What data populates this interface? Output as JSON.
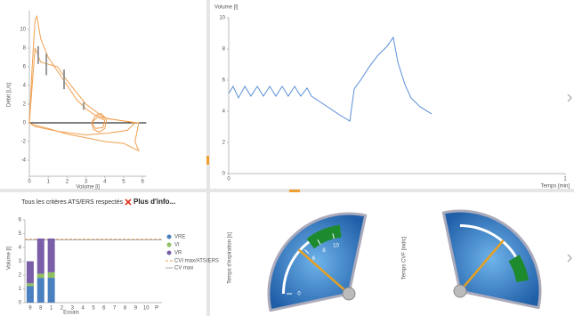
{
  "chart_data": [
    {
      "type": "line",
      "x_label": "Volume [l]",
      "y_label": "Débit [L/s]",
      "xlim": [
        0,
        6.2
      ],
      "xticks": [
        0,
        1,
        2,
        3,
        4,
        5,
        6
      ],
      "ylim": [
        -6,
        12
      ],
      "yticks": [
        -4,
        -2,
        0,
        2,
        4,
        6,
        8,
        10
      ],
      "series": [
        {
          "color": "#f0a050",
          "x": [
            0,
            0.15,
            0.3,
            0.4,
            0.6,
            1,
            1.5,
            2,
            2.5,
            3,
            3.5,
            4,
            5,
            5.8,
            5.7,
            5.6,
            5.8,
            5,
            4,
            3,
            2,
            1,
            0.2,
            0
          ],
          "values": [
            0,
            6,
            11,
            11.4,
            9,
            7,
            5.5,
            4,
            2.5,
            1.5,
            0.8,
            0.5,
            0.2,
            0,
            -1,
            -2,
            -3,
            -2.2,
            -2,
            -1.6,
            -1.2,
            -0.6,
            -0.2,
            0
          ]
        },
        {
          "color": "#f0a050",
          "x": [
            0,
            0.3,
            0.6,
            1.5,
            2,
            3,
            4,
            5.6,
            5.2,
            4.2,
            3,
            1.5,
            0.3,
            0
          ],
          "values": [
            0,
            8,
            6.5,
            6,
            4.5,
            2,
            0.5,
            0,
            -0.8,
            -1.1,
            -1.3,
            -0.9,
            -0.4,
            0
          ]
        },
        {
          "color": "#f0a050",
          "x": [
            3.3,
            3.5,
            3.8,
            4.1,
            4.0,
            3.7,
            3.4,
            3.3,
            3.6,
            4.0,
            3.9,
            3.5,
            3.3
          ],
          "values": [
            0,
            0.8,
            1,
            0.4,
            -0.6,
            -1,
            -0.7,
            0,
            0.6,
            0.3,
            -0.5,
            -0.6,
            0
          ]
        }
      ],
      "range_color": "#999999",
      "ranges": [
        {
          "x": 0.47,
          "low": 6.3,
          "high": 8.2
        },
        {
          "x": 0.9,
          "low": 5.1,
          "high": 7.4
        },
        {
          "x": 1.84,
          "low": 3.6,
          "high": 5.7
        },
        {
          "x": 2.88,
          "low": 1.4,
          "high": 2.2
        }
      ]
    },
    {
      "type": "line",
      "x_label": "Temps [min]",
      "y_label": "Volume [l]",
      "xlim": [
        0,
        1
      ],
      "xticks": [
        0,
        1
      ],
      "ylim": [
        0,
        10
      ],
      "yticks": [
        0,
        2,
        4,
        6,
        8,
        10
      ],
      "series": [
        {
          "color": "#5b8fd8",
          "x": [
            0,
            0.013,
            0.029,
            0.048,
            0.066,
            0.085,
            0.103,
            0.122,
            0.14,
            0.159,
            0.177,
            0.196,
            0.214,
            0.233,
            0.246,
            0.286,
            0.325,
            0.36,
            0.373,
            0.392,
            0.418,
            0.444,
            0.471,
            0.489,
            0.503,
            0.524,
            0.542,
            0.569,
            0.603
          ],
          "values": [
            5.14,
            5.6,
            4.86,
            5.6,
            4.97,
            5.6,
            4.97,
            5.6,
            4.97,
            5.6,
            4.97,
            5.6,
            4.97,
            5.49,
            4.97,
            4.4,
            3.83,
            3.37,
            5.43,
            6.0,
            6.86,
            7.6,
            8.17,
            8.74,
            7.14,
            5.71,
            4.86,
            4.29,
            3.83
          ]
        }
      ]
    },
    {
      "type": "bar",
      "title": "Tous les critères ATS/ERS respectés",
      "link": "Plus d'info...",
      "x_label": "Essais",
      "y_label": "Volume [l]",
      "categories": [
        "9",
        "8",
        "1",
        "2",
        "3",
        "4",
        "5",
        "6",
        "7",
        "8",
        "9",
        "10",
        "P"
      ],
      "ylim": [
        0,
        6
      ],
      "yticks": [
        0,
        1,
        2,
        3,
        4,
        5,
        6
      ],
      "series": [
        {
          "name": "VRE",
          "color": "#4a7fc0",
          "values": [
            1.2,
            1.8,
            1.8,
            null,
            null,
            null,
            null,
            null,
            null,
            null,
            null,
            null,
            null
          ]
        },
        {
          "name": "VI",
          "color": "#8fbf60",
          "values": [
            0.2,
            0.3,
            0.4,
            null,
            null,
            null,
            null,
            null,
            null,
            null,
            null,
            null,
            null
          ]
        },
        {
          "name": "VR",
          "color": "#7a5fa8",
          "values": [
            1.6,
            2.55,
            2.45,
            null,
            null,
            null,
            null,
            null,
            null,
            null,
            null,
            null,
            null
          ]
        }
      ],
      "lines": [
        {
          "name": "CVI max/ATS/ERS",
          "color": "#f0a050",
          "value": 4.6,
          "dashed": true
        },
        {
          "name": "CV max",
          "color": "#aaaaaa",
          "value": 4.55,
          "dashed": false
        }
      ]
    },
    {
      "type": "gauge",
      "title": "Temps d'expiration [s]",
      "min": 0,
      "max": 12,
      "ticks": [
        0,
        6,
        8,
        10
      ],
      "value": 5.5,
      "band": [
        7,
        11
      ],
      "band_color": "#1e8a2e"
    },
    {
      "type": "gauge",
      "title": "Temps CVF [indic]",
      "min": 0,
      "max": 1,
      "ticks": [],
      "value": 0.45,
      "band": [
        0.65,
        0.9
      ],
      "band_color": "#1e8a2e"
    }
  ]
}
